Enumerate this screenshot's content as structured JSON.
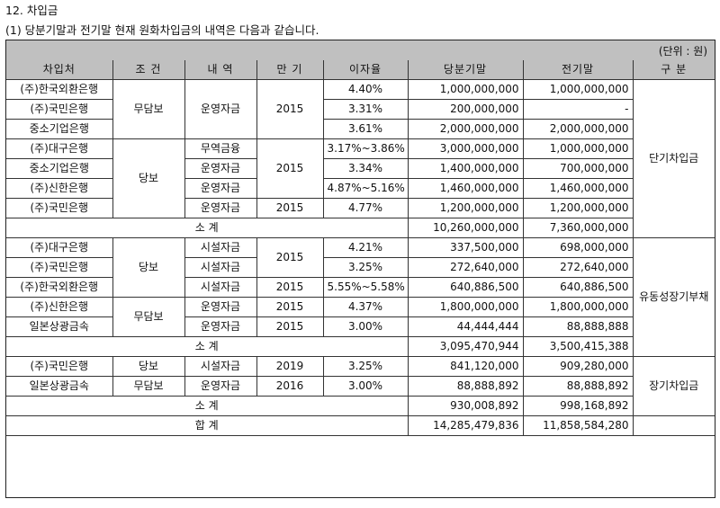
{
  "section_title": "12. 차입금",
  "subtitle": "(1) 당분기말과 전기말 현재 원화차입금의 내역은 다음과 같습니다.",
  "unit": "(단위 : 원)",
  "headers": [
    "차입처",
    "조 건",
    "내 역",
    "만 기",
    "이자율",
    "당분기말",
    "전기말",
    "구 분"
  ],
  "short_term": {
    "rows": [
      {
        "lender": "(주)한국외환은행",
        "rate": "4.40%",
        "current": "1,000,000,000",
        "prior": "1,000,000,000"
      },
      {
        "lender": "(주)국민은행",
        "rate": "3.31%",
        "current": "200,000,000",
        "prior": "-"
      },
      {
        "lender": "중소기업은행",
        "rate": "3.61%",
        "current": "2,000,000,000",
        "prior": "2,000,000,000"
      },
      {
        "lender": "(주)대구은행",
        "rate": "3.17%~3.86%",
        "current": "3,000,000,000",
        "prior": "1,000,000,000"
      },
      {
        "lender": "중소기업은행",
        "rate": "3.34%",
        "current": "1,400,000,000",
        "prior": "700,000,000"
      },
      {
        "lender": "(주)신한은행",
        "rate": "4.87%~5.16%",
        "current": "1,460,000,000",
        "prior": "1,460,000,000"
      },
      {
        "lender": "(주)국민은행",
        "rate": "4.77%",
        "current": "1,200,000,000",
        "prior": "1,200,000,000"
      }
    ],
    "cond_unsecured": "무담보",
    "cond_secured": "당보",
    "purpose_operating": "운영자금",
    "purpose_trade": "무역금융",
    "purpose_operating_2": "운영자금",
    "purpose_operating_3": "운영자금",
    "purpose_operating_4": "운영자금",
    "maturity_1": "2015",
    "maturity_2": "2015",
    "maturity_3": "2015",
    "category": "단기차입금",
    "subtotal_label": "소 계",
    "subtotal_current": "10,260,000,000",
    "subtotal_prior": "7,360,000,000"
  },
  "current_portion": {
    "rows": [
      {
        "lender": "(주)대구은행",
        "purpose": "시설자금",
        "rate": "4.21%",
        "current": "337,500,000",
        "prior": "698,000,000"
      },
      {
        "lender": "(주)국민은행",
        "purpose": "시설자금",
        "rate": "3.25%",
        "current": "272,640,000",
        "prior": "272,640,000"
      },
      {
        "lender": "(주)한국외환은행",
        "purpose": "시설자금",
        "maturity": "2015",
        "rate": "5.55%~5.58%",
        "current": "640,886,500",
        "prior": "640,886,500"
      },
      {
        "lender": "(주)신한은행",
        "purpose": "운영자금",
        "maturity": "2015",
        "rate": "4.37%",
        "current": "1,800,000,000",
        "prior": "1,800,000,000"
      },
      {
        "lender": "일본상광금속",
        "purpose": "운영자금",
        "maturity": "2015",
        "rate": "3.00%",
        "current": "44,444,444",
        "prior": "88,888,888"
      }
    ],
    "cond_secured": "당보",
    "cond_unsecured": "무담보",
    "maturity_shared": "2015",
    "category": "유동성장기부채",
    "subtotal_label": "소 계",
    "subtotal_current": "3,095,470,944",
    "subtotal_prior": "3,500,415,388"
  },
  "long_term": {
    "rows": [
      {
        "lender": "(주)국민은행",
        "cond": "당보",
        "purpose": "시설자금",
        "maturity": "2019",
        "rate": "3.25%",
        "current": "841,120,000",
        "prior": "909,280,000"
      },
      {
        "lender": "일본상광금속",
        "cond": "무담보",
        "purpose": "운영자금",
        "maturity": "2016",
        "rate": "3.00%",
        "current": "88,888,892",
        "prior": "88,888,892"
      }
    ],
    "category": "장기차입금",
    "subtotal_label": "소 계",
    "subtotal_current": "930,008,892",
    "subtotal_prior": "998,168,892"
  },
  "total": {
    "label": "합 계",
    "current": "14,285,479,836",
    "prior": "11,858,584,280",
    "highlight_color": "#e0242b"
  }
}
